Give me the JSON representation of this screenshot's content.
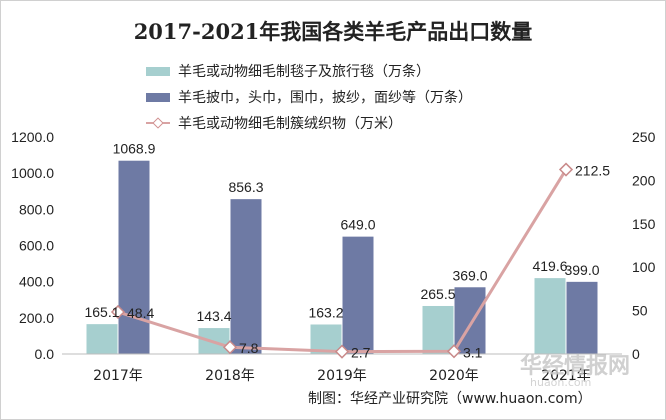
{
  "chart_data": {
    "type": "bar",
    "title": "2017-2021年我国各类羊毛产品出口数量",
    "categories": [
      "2017年",
      "2018年",
      "2019年",
      "2020年",
      "2021年"
    ],
    "series": [
      {
        "name": "羊毛或动物细毛制毯子及旅行毯（万条）",
        "type": "bar",
        "axis": "left",
        "color": "#a6cfcf",
        "values": [
          165.1,
          143.4,
          163.2,
          265.5,
          419.6
        ],
        "labels": [
          "165.1",
          "143.4",
          "163.2",
          "265.5",
          "419.6"
        ]
      },
      {
        "name": "羊毛披巾，头巾，围巾，披纱，面纱等（万条）",
        "type": "bar",
        "axis": "left",
        "color": "#6e7aa4",
        "values": [
          1068.9,
          856.3,
          649.0,
          369.0,
          399.0
        ],
        "labels": [
          "1068.9",
          "856.3",
          "649.0",
          "369.0",
          "399.0"
        ]
      },
      {
        "name": "羊毛或动物细毛制簇绒织物（万米）",
        "type": "line",
        "axis": "right",
        "color": "#d9a3a3",
        "values": [
          48.4,
          7.8,
          2.7,
          3.1,
          212.5
        ],
        "labels": [
          "48.4",
          "7.8",
          "2.7",
          "3.1",
          "212.5"
        ]
      }
    ],
    "y_left": {
      "min": 0,
      "max": 1200,
      "ticks": [
        "0.0",
        "200.0",
        "400.0",
        "600.0",
        "800.0",
        "1000.0",
        "1200.0"
      ]
    },
    "y_right": {
      "min": 0,
      "max": 250,
      "ticks": [
        "0",
        "50",
        "100",
        "150",
        "200",
        "250"
      ]
    },
    "legend_position": "top",
    "grid": false
  },
  "source": "制图：华经产业研究院（www.huaon.com）",
  "watermark": {
    "brand": "华经情报网",
    "url": "huaon.com"
  }
}
